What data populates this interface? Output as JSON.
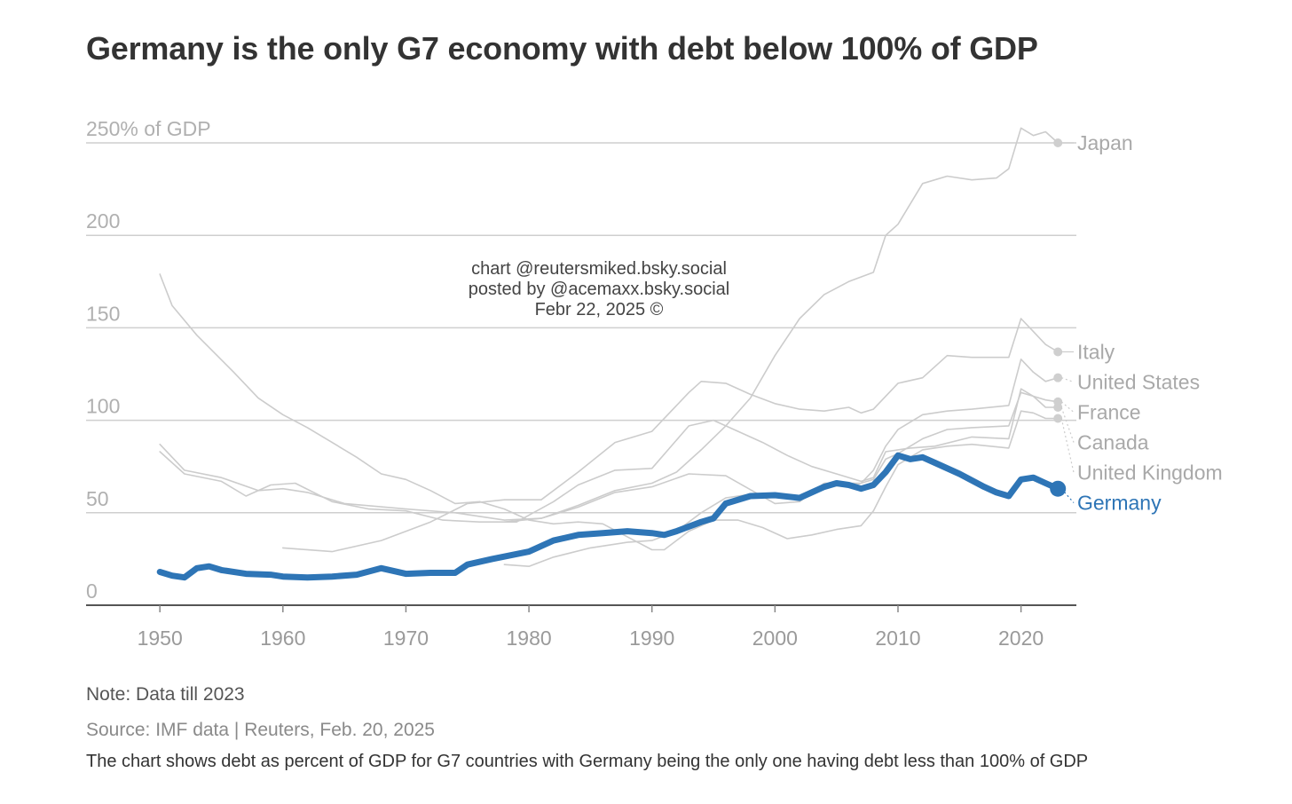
{
  "chart_data": {
    "type": "line",
    "title": "Germany is the only G7 economy with debt below 100% of GDP",
    "ylabel_unit": "% of GDP",
    "y_ticks": [
      {
        "value": 0,
        "label": "0"
      },
      {
        "value": 50,
        "label": "50"
      },
      {
        "value": 100,
        "label": "100"
      },
      {
        "value": 150,
        "label": "150"
      },
      {
        "value": 200,
        "label": "200"
      },
      {
        "value": 250,
        "label": "250% of GDP"
      }
    ],
    "x_ticks": [
      1950,
      1960,
      1970,
      1980,
      1990,
      2000,
      2010,
      2020
    ],
    "xlim": [
      1944,
      2024.5
    ],
    "ylim": [
      0,
      250
    ],
    "grid": true,
    "highlight_color": "#2e75b6",
    "muted_color": "#cccccc",
    "series": [
      {
        "name": "Japan",
        "highlight": false,
        "points": [
          [
            1978,
            45
          ],
          [
            1981,
            47
          ],
          [
            1984,
            54
          ],
          [
            1987,
            62
          ],
          [
            1990,
            66
          ],
          [
            1992,
            72
          ],
          [
            1994,
            84
          ],
          [
            1996,
            97
          ],
          [
            1998,
            112
          ],
          [
            2000,
            135
          ],
          [
            2002,
            155
          ],
          [
            2004,
            168
          ],
          [
            2006,
            175
          ],
          [
            2008,
            180
          ],
          [
            2009,
            200
          ],
          [
            2010,
            206
          ],
          [
            2012,
            228
          ],
          [
            2014,
            232
          ],
          [
            2016,
            230
          ],
          [
            2018,
            231
          ],
          [
            2019,
            236
          ],
          [
            2020,
            258
          ],
          [
            2021,
            254
          ],
          [
            2022,
            256
          ],
          [
            2023,
            250
          ]
        ]
      },
      {
        "name": "Italy",
        "highlight": false,
        "points": [
          [
            1960,
            31
          ],
          [
            1964,
            29
          ],
          [
            1968,
            35
          ],
          [
            1972,
            45
          ],
          [
            1975,
            55
          ],
          [
            1978,
            57
          ],
          [
            1981,
            57
          ],
          [
            1984,
            72
          ],
          [
            1987,
            88
          ],
          [
            1990,
            94
          ],
          [
            1993,
            115
          ],
          [
            1994,
            121
          ],
          [
            1996,
            120
          ],
          [
            1998,
            114
          ],
          [
            2000,
            109
          ],
          [
            2002,
            106
          ],
          [
            2004,
            105
          ],
          [
            2006,
            107
          ],
          [
            2007,
            104
          ],
          [
            2008,
            106
          ],
          [
            2010,
            120
          ],
          [
            2012,
            123
          ],
          [
            2014,
            135
          ],
          [
            2016,
            134
          ],
          [
            2019,
            134
          ],
          [
            2020,
            155
          ],
          [
            2021,
            148
          ],
          [
            2022,
            141
          ],
          [
            2023,
            137
          ]
        ]
      },
      {
        "name": "United States",
        "highlight": false,
        "points": [
          [
            1950,
            87
          ],
          [
            1952,
            73
          ],
          [
            1955,
            69
          ],
          [
            1958,
            62
          ],
          [
            1960,
            63
          ],
          [
            1962,
            61
          ],
          [
            1965,
            55
          ],
          [
            1970,
            52
          ],
          [
            1974,
            50
          ],
          [
            1978,
            46
          ],
          [
            1981,
            47
          ],
          [
            1984,
            53
          ],
          [
            1987,
            61
          ],
          [
            1990,
            64
          ],
          [
            1993,
            71
          ],
          [
            1996,
            70
          ],
          [
            2000,
            55
          ],
          [
            2002,
            56
          ],
          [
            2004,
            66
          ],
          [
            2007,
            66
          ],
          [
            2008,
            73
          ],
          [
            2009,
            86
          ],
          [
            2010,
            95
          ],
          [
            2012,
            103
          ],
          [
            2014,
            105
          ],
          [
            2016,
            106
          ],
          [
            2019,
            108
          ],
          [
            2020,
            133
          ],
          [
            2021,
            126
          ],
          [
            2022,
            121
          ],
          [
            2023,
            123
          ]
        ]
      },
      {
        "name": "France",
        "highlight": false,
        "points": [
          [
            1978,
            22
          ],
          [
            1980,
            21
          ],
          [
            1982,
            26
          ],
          [
            1985,
            31
          ],
          [
            1988,
            34
          ],
          [
            1990,
            35
          ],
          [
            1992,
            40
          ],
          [
            1994,
            50
          ],
          [
            1996,
            58
          ],
          [
            1998,
            60
          ],
          [
            2000,
            59
          ],
          [
            2002,
            59
          ],
          [
            2004,
            65
          ],
          [
            2006,
            64
          ],
          [
            2008,
            68
          ],
          [
            2009,
            79
          ],
          [
            2010,
            82
          ],
          [
            2012,
            90
          ],
          [
            2014,
            95
          ],
          [
            2016,
            96
          ],
          [
            2019,
            97
          ],
          [
            2020,
            115
          ],
          [
            2021,
            113
          ],
          [
            2022,
            111
          ],
          [
            2023,
            110
          ]
        ]
      },
      {
        "name": "Canada",
        "highlight": false,
        "points": [
          [
            1950,
            83
          ],
          [
            1952,
            71
          ],
          [
            1955,
            67
          ],
          [
            1957,
            59
          ],
          [
            1959,
            65
          ],
          [
            1961,
            66
          ],
          [
            1964,
            56
          ],
          [
            1967,
            52
          ],
          [
            1970,
            51
          ],
          [
            1973,
            46
          ],
          [
            1976,
            45
          ],
          [
            1979,
            45
          ],
          [
            1982,
            56
          ],
          [
            1984,
            65
          ],
          [
            1987,
            73
          ],
          [
            1990,
            74
          ],
          [
            1993,
            97
          ],
          [
            1995,
            100
          ],
          [
            1997,
            94
          ],
          [
            1999,
            88
          ],
          [
            2001,
            81
          ],
          [
            2003,
            75
          ],
          [
            2005,
            71
          ],
          [
            2007,
            67
          ],
          [
            2008,
            69
          ],
          [
            2009,
            83
          ],
          [
            2011,
            85
          ],
          [
            2013,
            86
          ],
          [
            2016,
            91
          ],
          [
            2019,
            90
          ],
          [
            2020,
            117
          ],
          [
            2021,
            113
          ],
          [
            2022,
            107
          ],
          [
            2023,
            107
          ]
        ]
      },
      {
        "name": "United Kingdom",
        "highlight": false,
        "points": [
          [
            1950,
            179
          ],
          [
            1951,
            162
          ],
          [
            1953,
            146
          ],
          [
            1956,
            126
          ],
          [
            1958,
            112
          ],
          [
            1960,
            103
          ],
          [
            1962,
            96
          ],
          [
            1964,
            88
          ],
          [
            1966,
            80
          ],
          [
            1968,
            71
          ],
          [
            1970,
            68
          ],
          [
            1972,
            62
          ],
          [
            1974,
            55
          ],
          [
            1976,
            56
          ],
          [
            1978,
            52
          ],
          [
            1980,
            46
          ],
          [
            1982,
            44
          ],
          [
            1984,
            45
          ],
          [
            1986,
            44
          ],
          [
            1988,
            37
          ],
          [
            1990,
            30
          ],
          [
            1991,
            30
          ],
          [
            1993,
            40
          ],
          [
            1995,
            46
          ],
          [
            1997,
            46
          ],
          [
            1999,
            42
          ],
          [
            2001,
            36
          ],
          [
            2003,
            38
          ],
          [
            2005,
            41
          ],
          [
            2007,
            43
          ],
          [
            2008,
            51
          ],
          [
            2009,
            64
          ],
          [
            2010,
            76
          ],
          [
            2012,
            84
          ],
          [
            2014,
            86
          ],
          [
            2016,
            87
          ],
          [
            2019,
            85
          ],
          [
            2020,
            105
          ],
          [
            2021,
            104
          ],
          [
            2022,
            101
          ],
          [
            2023,
            101
          ]
        ]
      },
      {
        "name": "Germany",
        "highlight": true,
        "points": [
          [
            1950,
            18
          ],
          [
            1951,
            16
          ],
          [
            1952,
            15
          ],
          [
            1953,
            20
          ],
          [
            1954,
            21
          ],
          [
            1955,
            19
          ],
          [
            1957,
            17
          ],
          [
            1959,
            16.5
          ],
          [
            1960,
            15.5
          ],
          [
            1962,
            15
          ],
          [
            1964,
            15.5
          ],
          [
            1966,
            16.5
          ],
          [
            1968,
            20
          ],
          [
            1970,
            17
          ],
          [
            1972,
            17.5
          ],
          [
            1974,
            17.5
          ],
          [
            1975,
            22
          ],
          [
            1977,
            25
          ],
          [
            1980,
            29
          ],
          [
            1982,
            35
          ],
          [
            1984,
            38
          ],
          [
            1986,
            39
          ],
          [
            1988,
            40
          ],
          [
            1990,
            39
          ],
          [
            1991,
            38
          ],
          [
            1992,
            40
          ],
          [
            1994,
            45
          ],
          [
            1995,
            47
          ],
          [
            1996,
            55
          ],
          [
            1998,
            59
          ],
          [
            2000,
            59.5
          ],
          [
            2002,
            58
          ],
          [
            2004,
            64
          ],
          [
            2005,
            66
          ],
          [
            2006,
            65
          ],
          [
            2007,
            63
          ],
          [
            2008,
            65
          ],
          [
            2009,
            72
          ],
          [
            2010,
            81
          ],
          [
            2011,
            79
          ],
          [
            2012,
            80
          ],
          [
            2013,
            77
          ],
          [
            2015,
            71
          ],
          [
            2017,
            64
          ],
          [
            2018,
            61
          ],
          [
            2019,
            59
          ],
          [
            2020,
            68
          ],
          [
            2021,
            69
          ],
          [
            2022,
            66
          ],
          [
            2023,
            63
          ]
        ]
      }
    ],
    "end_labels": [
      {
        "name": "Japan",
        "value": 250
      },
      {
        "name": "Italy",
        "value": 137
      },
      {
        "name": "United States",
        "value": 123
      },
      {
        "name": "France",
        "value": 110
      },
      {
        "name": "Canada",
        "value": 107
      },
      {
        "name": "United Kingdom",
        "value": 101
      },
      {
        "name": "Germany",
        "value": 63
      }
    ]
  },
  "watermark": [
    "chart @reutersmiked.bsky.social",
    "posted by @acemaxx.bsky.social",
    "Febr 22, 2025 ©"
  ],
  "note": "Note: Data till 2023",
  "source": "Source: IMF data | Reuters, Feb. 20, 2025",
  "caption": "The chart shows debt as percent of GDP for G7 countries with Germany being the only one having debt less than 100% of GDP"
}
